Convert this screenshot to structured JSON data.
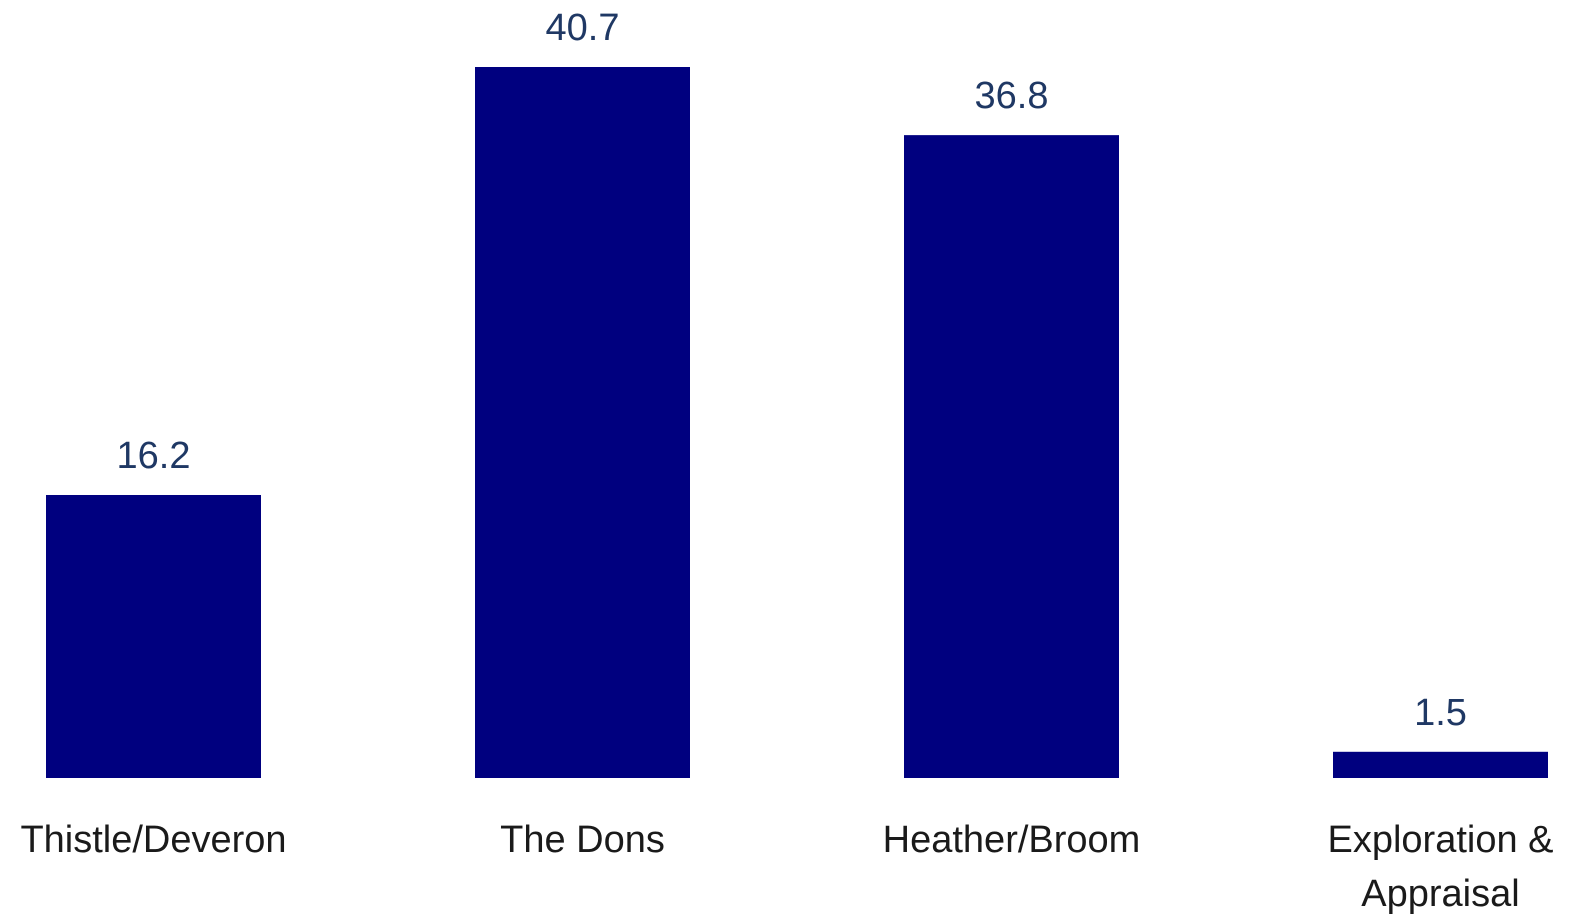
{
  "chart_data": {
    "type": "bar",
    "categories": [
      [
        "Thistle/Deveron"
      ],
      [
        "The Dons"
      ],
      [
        "Heather/Broom"
      ],
      [
        "Exploration &",
        "Appraisal"
      ]
    ],
    "values": [
      16.2,
      40.7,
      36.8,
      1.5
    ],
    "value_labels": [
      "16.2",
      "40.7",
      "36.8",
      "1.5"
    ],
    "title": "",
    "xlabel": "",
    "ylabel": "",
    "ylim": [
      0,
      40.7
    ],
    "grid": false,
    "legend": "none",
    "colors": {
      "bar": "#00007F",
      "value_label": "#1F3864",
      "category_label": "#1a1a1a"
    }
  }
}
